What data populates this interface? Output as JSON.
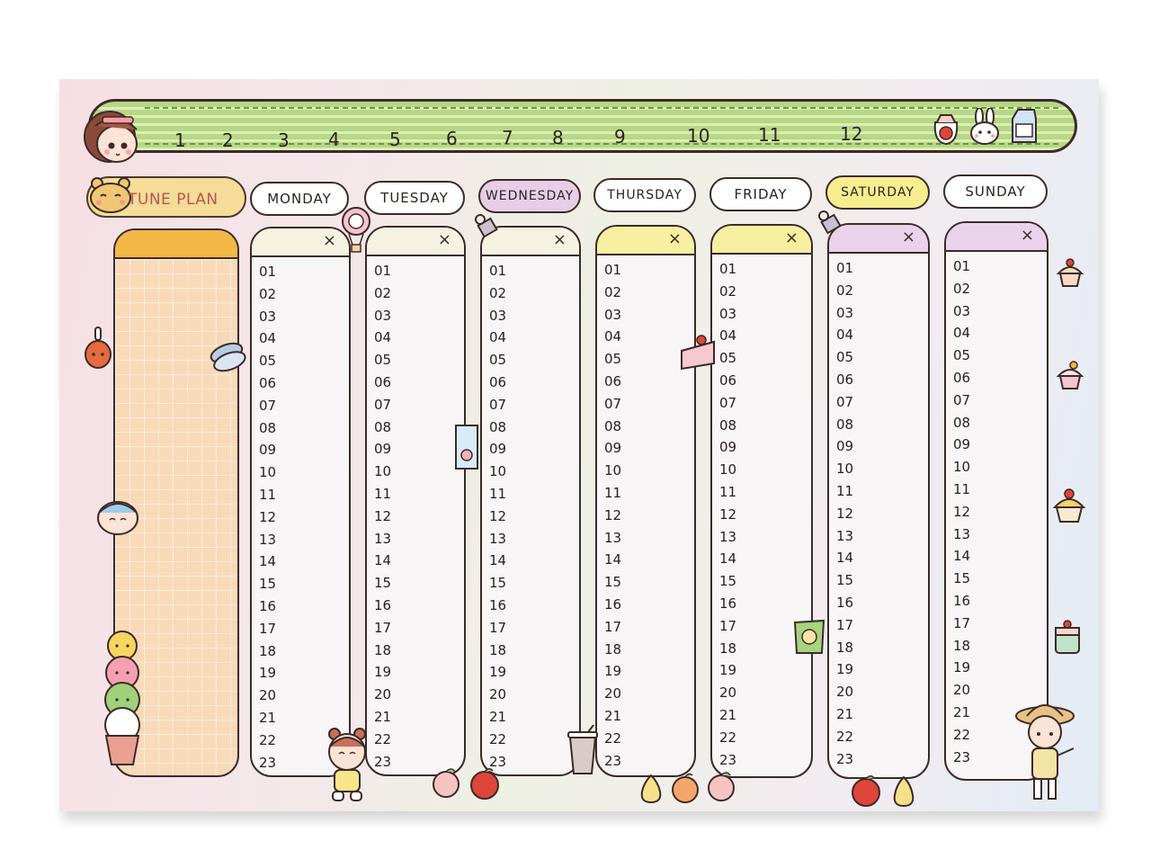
{
  "month_numbers": [
    "1",
    "2",
    "3",
    "4",
    "5",
    "6",
    "7",
    "8",
    "9",
    "10",
    "11",
    "12"
  ],
  "tune_plan_label": "TUNE PLAN",
  "close_symbol": "×",
  "days": [
    {
      "label": "MONDAY",
      "pill_color": "#ffffff",
      "head_color": "#f6f2e2"
    },
    {
      "label": "TUESDAY",
      "pill_color": "#ffffff",
      "head_color": "#f6f2e2"
    },
    {
      "label": "WEDNESDAY",
      "pill_color": "#e7cde6",
      "head_color": "#f6f2e2"
    },
    {
      "label": "THURSDAY",
      "pill_color": "#ffffff",
      "head_color": "#f6ef9f"
    },
    {
      "label": "FRIDAY",
      "pill_color": "#ffffff",
      "head_color": "#f6ef9f"
    },
    {
      "label": "SATURDAY",
      "pill_color": "#f6ee8e",
      "head_color": "#ead2ea"
    },
    {
      "label": "SUNDAY",
      "pill_color": "#ffffff",
      "head_color": "#ead2ea"
    }
  ],
  "hours": [
    "01",
    "02",
    "03",
    "04",
    "05",
    "06",
    "07",
    "08",
    "09",
    "10",
    "11",
    "12",
    "13",
    "14",
    "15",
    "16",
    "17",
    "18",
    "19",
    "20",
    "21",
    "22",
    "23"
  ],
  "colors": {
    "month_bar_green": "#b6d784",
    "tune_column_orange": "#f2b745",
    "outline": "#3c2a28"
  },
  "stickers": [
    "girl-face-icon",
    "tomato-bag-icon",
    "bunny-icon",
    "milk-carton-icon",
    "bear-icon",
    "chicken-leg-icon",
    "macaron-icon",
    "milk-box-icon",
    "hot-air-balloon-icon",
    "binder-clip-icon",
    "cake-slice-icon",
    "snack-bag-icon",
    "cupcake-icon",
    "ice-cream-cone-icon",
    "coffee-cup-icon",
    "peach-icon",
    "apple-icon",
    "pear-icon",
    "girl-in-hat-icon",
    "girl-sitting-icon"
  ]
}
